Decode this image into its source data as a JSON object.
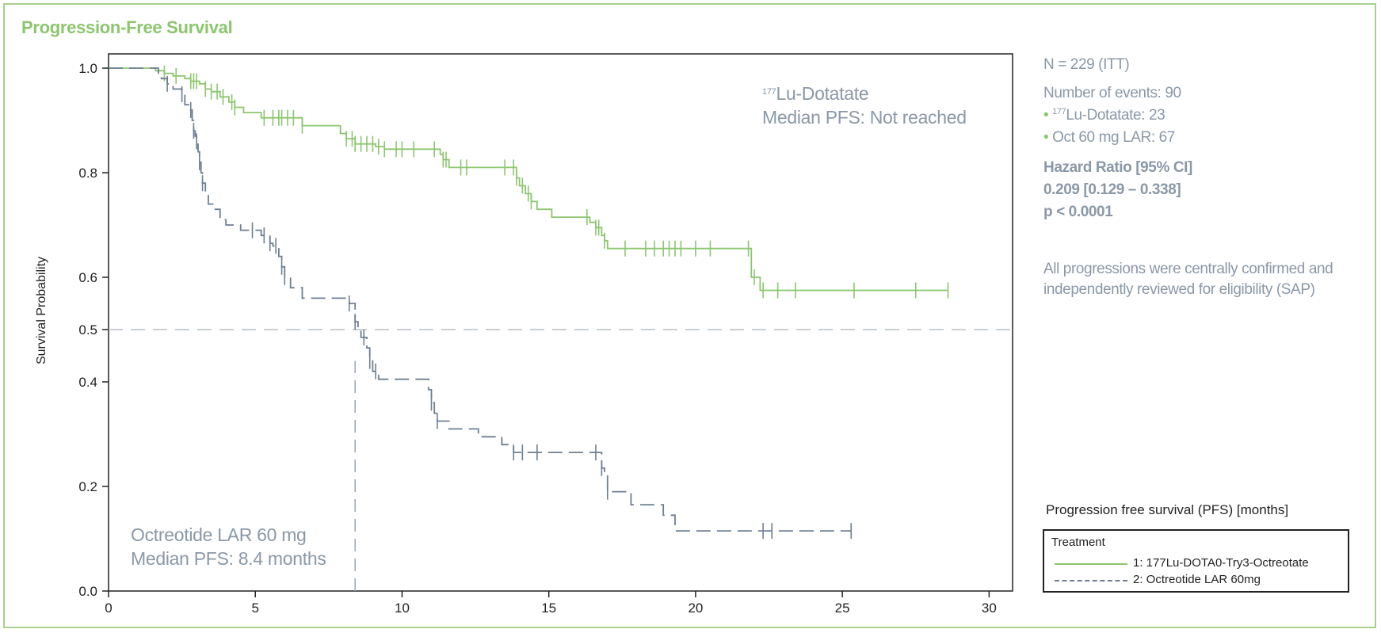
{
  "page": {
    "title": "Progression-Free Survival"
  },
  "colors": {
    "lu": "#8cc66e",
    "oct": "#6e7f92",
    "frame": "#a9d08e",
    "text_gray": "#8a98a8"
  },
  "side_panel": {
    "n": "N = 229 (ITT)",
    "events": "Number of events: 90",
    "events_lu_sup": "177",
    "events_lu": "Lu-Dotatate: 23",
    "events_oct": "Oct 60 mg LAR: 67",
    "hr_title": "Hazard Ratio [95% CI]",
    "hr_value": "0.209 [0.129 – 0.338]",
    "p_value": "p < 0.0001",
    "note": "All progressions were centrally confirmed and independently reviewed for eligibility (SAP)"
  },
  "annotations": {
    "lu_sup": "177",
    "lu_name": "Lu-Dotatate",
    "lu_median": "Median PFS: Not reached",
    "oct_name": "Octreotide LAR 60 mg",
    "oct_median": "Median PFS: 8.4 months"
  },
  "chart_data": {
    "type": "line",
    "subtype": "kaplan-meier",
    "xlabel": "Progression free survival (PFS) [months]",
    "ylabel": "Survival Probability",
    "xlim": [
      0,
      30
    ],
    "ylim": [
      0,
      1.0
    ],
    "x_ticks": [
      0,
      5,
      10,
      15,
      20,
      25,
      30
    ],
    "y_ticks": [
      0.0,
      0.2,
      0.4,
      0.5,
      0.6,
      0.8,
      1.0
    ],
    "reference_lines": [
      {
        "axis": "y",
        "value": 0.5,
        "style": "dashed"
      },
      {
        "axis": "x",
        "value": 8.4,
        "from": 0,
        "to": 0.44,
        "style": "dashed"
      }
    ],
    "legend": {
      "title": "Treatment",
      "position": "bottom-right",
      "entries": [
        {
          "label": "1: 177Lu-DOTA0-Try3-Octreotate",
          "style": "solid"
        },
        {
          "label": "2: Octreotide LAR 60mg",
          "style": "dashed"
        }
      ]
    },
    "series": [
      {
        "name": "1: 177Lu-DOTA0-Try3-Octreotate",
        "style": "solid",
        "steps": [
          [
            0,
            1.0
          ],
          [
            1.6,
            0.995
          ],
          [
            1.9,
            0.99
          ],
          [
            2.2,
            0.985
          ],
          [
            2.6,
            0.98
          ],
          [
            2.8,
            0.975
          ],
          [
            3.1,
            0.97
          ],
          [
            3.3,
            0.96
          ],
          [
            3.5,
            0.955
          ],
          [
            3.8,
            0.945
          ],
          [
            4.1,
            0.935
          ],
          [
            4.3,
            0.925
          ],
          [
            4.6,
            0.915
          ],
          [
            5.2,
            0.905
          ],
          [
            6.6,
            0.89
          ],
          [
            7.9,
            0.875
          ],
          [
            8.1,
            0.865
          ],
          [
            8.4,
            0.855
          ],
          [
            9.1,
            0.85
          ],
          [
            9.4,
            0.845
          ],
          [
            11.3,
            0.835
          ],
          [
            11.4,
            0.825
          ],
          [
            11.6,
            0.81
          ],
          [
            13.9,
            0.79
          ],
          [
            14.0,
            0.775
          ],
          [
            14.2,
            0.76
          ],
          [
            14.4,
            0.745
          ],
          [
            14.6,
            0.73
          ],
          [
            15.1,
            0.715
          ],
          [
            16.4,
            0.705
          ],
          [
            16.6,
            0.695
          ],
          [
            16.8,
            0.68
          ],
          [
            16.9,
            0.67
          ],
          [
            17.0,
            0.655
          ],
          [
            21.9,
            0.6
          ],
          [
            22.2,
            0.575
          ],
          [
            28.6,
            0.575
          ]
        ],
        "censor": [
          1.9,
          2.3,
          2.8,
          2.9,
          3.0,
          3.3,
          3.5,
          3.7,
          3.9,
          4.2,
          4.3,
          5.3,
          5.6,
          5.8,
          5.9,
          6.1,
          6.3,
          6.6,
          8.1,
          8.3,
          8.4,
          8.6,
          8.8,
          9.0,
          9.2,
          9.4,
          9.8,
          10.0,
          10.4,
          11.1,
          11.4,
          11.5,
          12.0,
          12.2,
          13.5,
          13.8,
          13.9,
          14.1,
          14.3,
          14.4,
          16.3,
          16.6,
          16.7,
          16.9,
          17.6,
          18.3,
          18.6,
          18.9,
          19.1,
          19.3,
          19.5,
          20.0,
          20.5,
          21.8,
          22.0,
          22.3,
          22.8,
          23.4,
          25.4,
          27.5,
          28.6
        ]
      },
      {
        "name": "2: Octreotide LAR 60mg",
        "style": "dashed",
        "steps": [
          [
            0,
            1.0
          ],
          [
            1.7,
            0.99
          ],
          [
            1.8,
            0.98
          ],
          [
            2.0,
            0.97
          ],
          [
            2.2,
            0.96
          ],
          [
            2.5,
            0.95
          ],
          [
            2.6,
            0.93
          ],
          [
            2.8,
            0.92
          ],
          [
            2.85,
            0.9
          ],
          [
            2.9,
            0.88
          ],
          [
            2.95,
            0.87
          ],
          [
            3.0,
            0.86
          ],
          [
            3.05,
            0.84
          ],
          [
            3.1,
            0.82
          ],
          [
            3.15,
            0.8
          ],
          [
            3.2,
            0.78
          ],
          [
            3.3,
            0.76
          ],
          [
            3.4,
            0.74
          ],
          [
            3.6,
            0.73
          ],
          [
            3.8,
            0.71
          ],
          [
            4.0,
            0.7
          ],
          [
            4.5,
            0.69
          ],
          [
            5.2,
            0.68
          ],
          [
            5.5,
            0.665
          ],
          [
            5.6,
            0.66
          ],
          [
            5.8,
            0.64
          ],
          [
            5.9,
            0.62
          ],
          [
            6.0,
            0.6
          ],
          [
            6.2,
            0.58
          ],
          [
            6.6,
            0.56
          ],
          [
            8.2,
            0.55
          ],
          [
            8.4,
            0.515
          ],
          [
            8.5,
            0.5
          ],
          [
            8.6,
            0.485
          ],
          [
            8.8,
            0.465
          ],
          [
            8.9,
            0.44
          ],
          [
            9.0,
            0.42
          ],
          [
            9.2,
            0.405
          ],
          [
            10.9,
            0.385
          ],
          [
            11.0,
            0.36
          ],
          [
            11.1,
            0.34
          ],
          [
            11.2,
            0.325
          ],
          [
            11.6,
            0.31
          ],
          [
            12.6,
            0.295
          ],
          [
            13.4,
            0.28
          ],
          [
            13.8,
            0.265
          ],
          [
            16.8,
            0.235
          ],
          [
            16.9,
            0.22
          ],
          [
            17.0,
            0.19
          ],
          [
            17.8,
            0.165
          ],
          [
            18.9,
            0.145
          ],
          [
            19.3,
            0.115
          ],
          [
            25.3,
            0.115
          ]
        ],
        "censor": [
          2.0,
          2.5,
          2.8,
          2.9,
          3.0,
          3.1,
          3.2,
          4.9,
          5.3,
          5.5,
          5.7,
          5.9,
          6.0,
          8.2,
          8.4,
          8.7,
          8.9,
          9.1,
          11.0,
          11.2,
          13.8,
          14.1,
          14.6,
          16.6,
          16.8,
          17.0,
          22.3,
          22.6,
          25.3
        ]
      }
    ]
  }
}
